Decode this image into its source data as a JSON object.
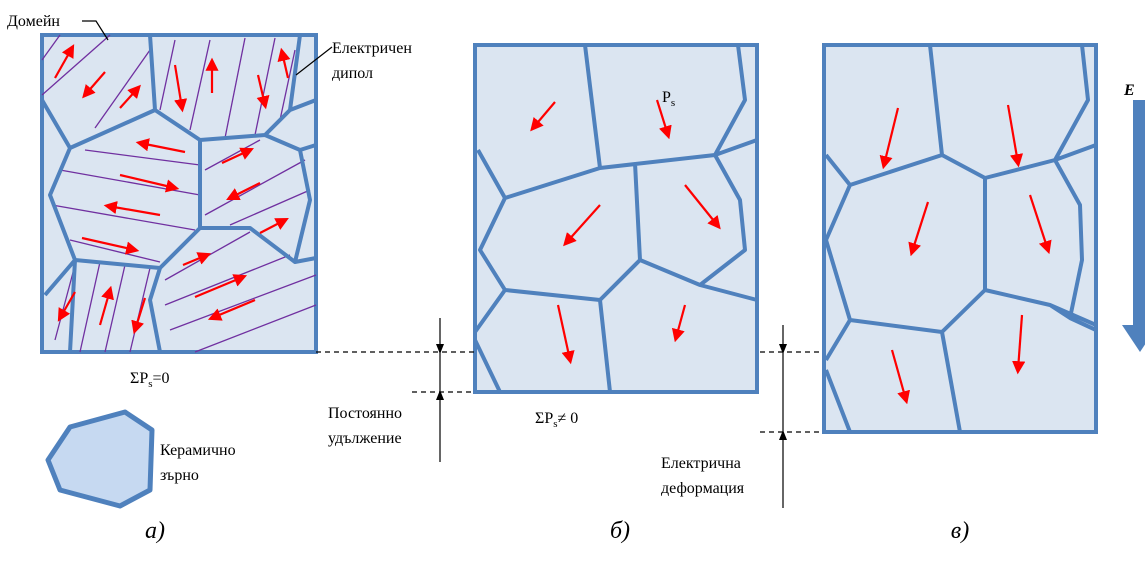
{
  "labels": {
    "domain": "Домейн",
    "dipole": [
      "Електричен",
      "дипол"
    ],
    "sum_a": {
      "main": "ΣP",
      "sub": "s",
      "rest": "=0"
    },
    "grain": [
      "Керамично",
      "зърно"
    ],
    "ps": {
      "main": "P",
      "sub": "s"
    },
    "sum_b": {
      "main": "ΣP",
      "sub": "s",
      "rest": "≠ 0"
    },
    "permanent": [
      "Постоянно",
      "удължение"
    ],
    "electric": [
      "Електрична",
      "деформация"
    ],
    "field": "E",
    "panels": [
      "а)",
      "б)",
      "в)"
    ]
  }
}
